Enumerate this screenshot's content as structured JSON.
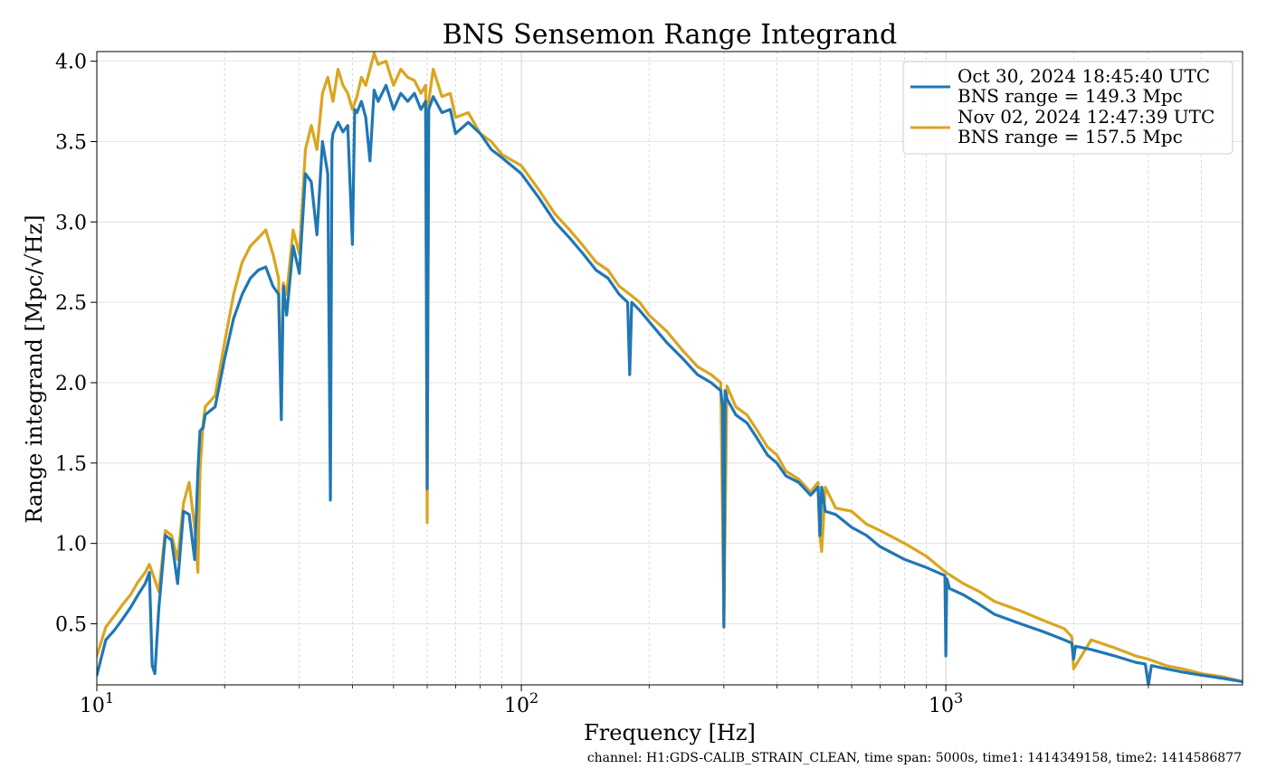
{
  "chart_data": {
    "type": "line",
    "title": "BNS Sensemon Range Integrand",
    "xlabel": "Frequency [Hz]",
    "ylabel": "Range integrand [Mpc/√Hz]",
    "x_scale": "log",
    "xlim": [
      10,
      5000
    ],
    "ylim": [
      0.12,
      4.06
    ],
    "x_ticks": [
      {
        "value": 10,
        "base": "10",
        "exp": "1"
      },
      {
        "value": 100,
        "base": "10",
        "exp": "2"
      },
      {
        "value": 1000,
        "base": "10",
        "exp": "3"
      }
    ],
    "y_ticks": [
      {
        "value": 0.5,
        "label": "0.5"
      },
      {
        "value": 1.0,
        "label": "1.0"
      },
      {
        "value": 1.5,
        "label": "1.5"
      },
      {
        "value": 2.0,
        "label": "2.0"
      },
      {
        "value": 2.5,
        "label": "2.5"
      },
      {
        "value": 3.0,
        "label": "3.0"
      },
      {
        "value": 3.5,
        "label": "3.5"
      },
      {
        "value": 4.0,
        "label": "4.0"
      }
    ],
    "grid": true,
    "legend_position": "top-right",
    "series": [
      {
        "name": "Oct 30, 2024 18:45:40 UTC",
        "subtitle": "BNS range = 149.3 Mpc",
        "color": "#1f77b4",
        "x": [
          10,
          10.5,
          11,
          11.5,
          12,
          12.5,
          13,
          13.3,
          13.5,
          13.7,
          14,
          14.5,
          15,
          15.5,
          16,
          16.5,
          17,
          17.3,
          17.5,
          17.8,
          18,
          19,
          20,
          21,
          22,
          23,
          24,
          25,
          26,
          26.8,
          27.2,
          27.5,
          28,
          29,
          30,
          31,
          32,
          33,
          34,
          35,
          35.5,
          35.8,
          36,
          37,
          38,
          39,
          40,
          40.5,
          41,
          42,
          43,
          44,
          45,
          46,
          48,
          50,
          52,
          54,
          56,
          58,
          59.5,
          60,
          60.5,
          62,
          65,
          68,
          70,
          75,
          80,
          85,
          90,
          100,
          110,
          120,
          130,
          140,
          150,
          160,
          170,
          178,
          180,
          182,
          190,
          200,
          220,
          240,
          260,
          280,
          295,
          298,
          300,
          302,
          305,
          320,
          340,
          360,
          380,
          400,
          420,
          450,
          480,
          500,
          505,
          510,
          520,
          550,
          600,
          650,
          700,
          800,
          900,
          995,
          1000,
          1005,
          1020,
          1100,
          1200,
          1300,
          1500,
          1700,
          1900,
          1980,
          2000,
          2020,
          2200,
          2500,
          2800,
          2950,
          3000,
          3050,
          3300,
          3600,
          4000,
          4500,
          5000
        ],
        "values": [
          0.18,
          0.4,
          0.46,
          0.53,
          0.6,
          0.68,
          0.75,
          0.82,
          0.24,
          0.19,
          0.6,
          1.05,
          1.02,
          0.75,
          1.2,
          1.18,
          0.9,
          1.45,
          1.7,
          1.72,
          1.8,
          1.85,
          2.15,
          2.4,
          2.55,
          2.65,
          2.7,
          2.72,
          2.6,
          2.55,
          1.77,
          2.6,
          2.42,
          2.85,
          2.68,
          3.3,
          3.25,
          2.92,
          3.5,
          3.3,
          1.27,
          3.5,
          3.55,
          3.62,
          3.56,
          3.6,
          2.86,
          3.7,
          3.68,
          3.75,
          3.65,
          3.38,
          3.82,
          3.75,
          3.85,
          3.7,
          3.8,
          3.75,
          3.8,
          3.7,
          3.75,
          1.34,
          3.7,
          3.78,
          3.68,
          3.7,
          3.55,
          3.62,
          3.55,
          3.45,
          3.4,
          3.3,
          3.15,
          3.0,
          2.9,
          2.8,
          2.7,
          2.65,
          2.55,
          2.5,
          2.05,
          2.5,
          2.45,
          2.38,
          2.25,
          2.15,
          2.05,
          2.0,
          1.95,
          1.85,
          0.48,
          1.95,
          1.9,
          1.8,
          1.75,
          1.65,
          1.55,
          1.5,
          1.42,
          1.38,
          1.3,
          1.35,
          1.05,
          1.35,
          1.2,
          1.18,
          1.1,
          1.05,
          0.98,
          0.9,
          0.85,
          0.8,
          0.3,
          0.78,
          0.72,
          0.68,
          0.62,
          0.56,
          0.5,
          0.45,
          0.4,
          0.38,
          0.28,
          0.36,
          0.34,
          0.3,
          0.26,
          0.25,
          0.12,
          0.24,
          0.22,
          0.2,
          0.18,
          0.16,
          0.14
        ]
      },
      {
        "name": "Nov 02, 2024 12:47:39 UTC",
        "subtitle": "BNS range = 157.5 Mpc",
        "color": "#daa520",
        "x": [
          10,
          10.5,
          11,
          11.5,
          12,
          12.5,
          13,
          13.3,
          14,
          14.5,
          15,
          15.5,
          16,
          16.5,
          17,
          17.3,
          17.5,
          17.8,
          18,
          19,
          20,
          21,
          22,
          23,
          24,
          25,
          26,
          26.8,
          27.2,
          27.5,
          28,
          29,
          30,
          31,
          32,
          33,
          34,
          35,
          36,
          37,
          38,
          39,
          40,
          41,
          42,
          43,
          44,
          45,
          46,
          48,
          50,
          52,
          54,
          56,
          58,
          59.5,
          60,
          60.5,
          62,
          65,
          68,
          70,
          75,
          80,
          85,
          90,
          100,
          110,
          120,
          130,
          140,
          150,
          160,
          170,
          180,
          190,
          200,
          220,
          240,
          260,
          280,
          295,
          300,
          305,
          320,
          340,
          360,
          380,
          400,
          420,
          450,
          480,
          500,
          505,
          510,
          520,
          550,
          600,
          650,
          700,
          800,
          900,
          1000,
          1100,
          1200,
          1300,
          1500,
          1700,
          1900,
          1980,
          2000,
          2200,
          2500,
          2800,
          3000,
          3300,
          3600,
          4000,
          4500,
          5000
        ],
        "values": [
          0.3,
          0.48,
          0.55,
          0.62,
          0.68,
          0.76,
          0.82,
          0.87,
          0.7,
          1.08,
          1.05,
          0.9,
          1.25,
          1.38,
          1.1,
          0.82,
          1.45,
          1.75,
          1.85,
          1.92,
          2.25,
          2.55,
          2.75,
          2.85,
          2.9,
          2.95,
          2.8,
          2.65,
          1.9,
          2.62,
          2.55,
          2.95,
          2.8,
          3.45,
          3.6,
          3.45,
          3.8,
          3.9,
          3.75,
          3.95,
          3.85,
          3.8,
          3.7,
          3.78,
          3.9,
          3.85,
          3.95,
          4.05,
          3.98,
          4.0,
          3.85,
          3.95,
          3.9,
          3.88,
          3.8,
          3.85,
          1.13,
          3.75,
          3.95,
          3.78,
          3.8,
          3.65,
          3.68,
          3.55,
          3.5,
          3.42,
          3.35,
          3.2,
          3.05,
          2.95,
          2.85,
          2.75,
          2.7,
          2.6,
          2.55,
          2.5,
          2.42,
          2.32,
          2.2,
          2.1,
          2.05,
          2.0,
          0.5,
          1.98,
          1.85,
          1.8,
          1.7,
          1.6,
          1.55,
          1.45,
          1.4,
          1.32,
          1.38,
          1.05,
          0.95,
          1.35,
          1.22,
          1.2,
          1.12,
          1.08,
          1.0,
          0.92,
          0.82,
          0.75,
          0.7,
          0.64,
          0.58,
          0.52,
          0.47,
          0.42,
          0.22,
          0.4,
          0.35,
          0.3,
          0.28,
          0.24,
          0.22,
          0.19,
          0.17,
          0.14
        ]
      }
    ]
  },
  "footer_text": "channel: H1:GDS-CALIB_STRAIN_CLEAN, time span: 5000s, time1: 1414349158, time2: 1414586877"
}
